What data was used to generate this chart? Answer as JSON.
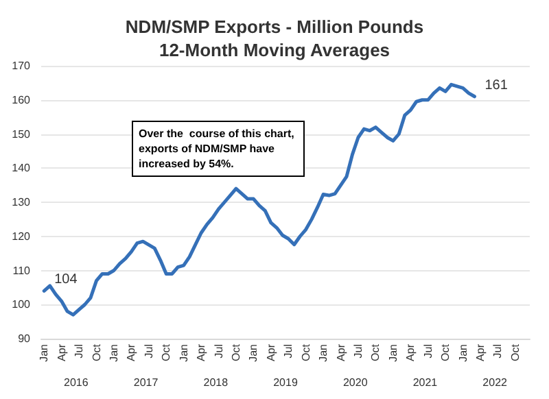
{
  "chart_data": {
    "type": "line",
    "title": "NDM/SMP Exports - Million Pounds\n12-Month Moving Averages",
    "categories": [
      "Jan",
      null,
      null,
      "Apr",
      null,
      null,
      "Jul",
      null,
      null,
      "Oct",
      null,
      null,
      "Jan",
      null,
      null,
      "Apr",
      null,
      null,
      "Jul",
      null,
      null,
      "Oct",
      null,
      null,
      "Jan",
      null,
      null,
      "Apr",
      null,
      null,
      "Jul",
      null,
      null,
      "Oct",
      null,
      null,
      "Jan",
      null,
      null,
      "Apr",
      null,
      null,
      "Jul",
      null,
      null,
      "Oct",
      null,
      null,
      "Jan",
      null,
      null,
      "Apr",
      null,
      null,
      "Jul",
      null,
      null,
      "Oct",
      null,
      null,
      "Jan",
      null,
      null,
      "Apr",
      null,
      null,
      "Jul",
      null,
      null,
      "Oct",
      null,
      null,
      "Jan",
      null,
      null,
      "Apr",
      null,
      null,
      "Jul",
      null,
      null,
      "Oct",
      null,
      null
    ],
    "series": [
      {
        "color": "#3570b8",
        "values": [
          104,
          105.5,
          103,
          101,
          98,
          97,
          98.5,
          100,
          102,
          107,
          109,
          109,
          110,
          112,
          113.5,
          115.5,
          118,
          118.5,
          117.5,
          116.5,
          113,
          109,
          109,
          111,
          111.5,
          114,
          117.5,
          121,
          123.5,
          125.5,
          128,
          130,
          132,
          134,
          132.5,
          131,
          131,
          129,
          127.5,
          124,
          122.5,
          120.3,
          119.3,
          117.6,
          120,
          122,
          125,
          128.5,
          132.3,
          132,
          132.5,
          135,
          137.5,
          144,
          149,
          151.5,
          151,
          152,
          150.5,
          149,
          148,
          150,
          155.5,
          157,
          159.5,
          160,
          160,
          162,
          163.5,
          162.5,
          164.5,
          164,
          163.5,
          162,
          161,
          null,
          null,
          null,
          null,
          null,
          null,
          null,
          null,
          null
        ],
        "value_labels": [
          "104",
          null,
          null,
          null,
          null,
          null,
          null,
          null,
          null,
          null,
          null,
          null,
          null,
          null,
          null,
          null,
          null,
          null,
          null,
          null,
          null,
          null,
          null,
          null,
          null,
          null,
          null,
          null,
          null,
          null,
          null,
          null,
          null,
          null,
          null,
          null,
          null,
          null,
          null,
          null,
          null,
          null,
          null,
          null,
          null,
          null,
          null,
          null,
          null,
          null,
          null,
          null,
          null,
          null,
          null,
          null,
          null,
          null,
          null,
          null,
          null,
          null,
          null,
          null,
          null,
          null,
          null,
          null,
          null,
          null,
          null,
          null,
          null,
          null,
          "161",
          null,
          null,
          null,
          null,
          null,
          null,
          null,
          null,
          null
        ]
      }
    ],
    "annotations": [
      "Over the  course of this chart, exports of NDM/SMP have increased by 54%.",
      "2016",
      "2017",
      "2018",
      "2019",
      "2020",
      "2021",
      "2022"
    ],
    "ylim": [
      90,
      170
    ],
    "yticks": [
      90,
      100,
      110,
      120,
      130,
      140,
      150,
      160,
      170
    ],
    "grid": "y",
    "marker": "none",
    "line_style": "solid"
  }
}
